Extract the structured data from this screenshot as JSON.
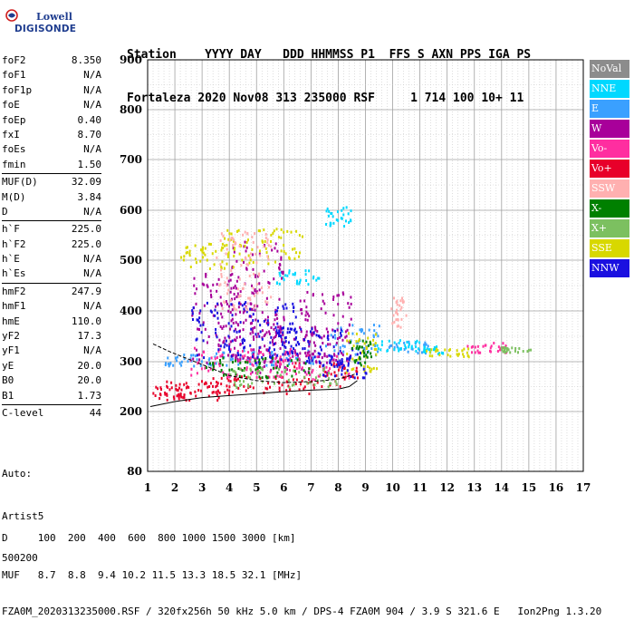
{
  "logo": {
    "line1": "Lowell",
    "line2": "DIGISONDE"
  },
  "header": {
    "labels": "Station    YYYY DAY   DDD HHMMSS P1  FFS S AXN PPS IGA PS",
    "values": "Fortaleza 2020 Nov08 313 235000 RSF     1 714 100 10+ 11"
  },
  "params": {
    "group1": [
      {
        "name": "foF2",
        "value": "8.350"
      },
      {
        "name": "foF1",
        "value": "N/A"
      },
      {
        "name": "foF1p",
        "value": "N/A"
      },
      {
        "name": "foE",
        "value": "N/A"
      },
      {
        "name": "foEp",
        "value": "0.40"
      },
      {
        "name": "fxI",
        "value": "8.70"
      },
      {
        "name": "foEs",
        "value": "N/A"
      },
      {
        "name": "fmin",
        "value": "1.50"
      }
    ],
    "group2": [
      {
        "name": "MUF(D)",
        "value": "32.09"
      },
      {
        "name": "M(D)",
        "value": "3.84"
      },
      {
        "name": "D",
        "value": "N/A"
      }
    ],
    "group3": [
      {
        "name": "h`F",
        "value": "225.0"
      },
      {
        "name": "h`F2",
        "value": "225.0"
      },
      {
        "name": "h`E",
        "value": "N/A"
      },
      {
        "name": "h`Es",
        "value": "N/A"
      }
    ],
    "group4": [
      {
        "name": "hmF2",
        "value": "247.9"
      },
      {
        "name": "hmF1",
        "value": "N/A"
      },
      {
        "name": "hmE",
        "value": "110.0"
      },
      {
        "name": "yF2",
        "value": "17.3"
      },
      {
        "name": "yF1",
        "value": "N/A"
      },
      {
        "name": "yE",
        "value": "20.0"
      },
      {
        "name": "B0",
        "value": "20.0"
      },
      {
        "name": "B1",
        "value": "1.73"
      }
    ],
    "group5": [
      {
        "name": "C-level",
        "value": "44"
      }
    ]
  },
  "auto": {
    "line1": "Auto:",
    "line2": "Artist5",
    "line3": "500200"
  },
  "legend": [
    {
      "label": "NoVal",
      "color": "#8c8c8c"
    },
    {
      "label": "NNE",
      "color": "#00d8ff"
    },
    {
      "label": "E",
      "color": "#3aa0ff"
    },
    {
      "label": "W",
      "color": "#a8009a"
    },
    {
      "label": "Vo-",
      "color": "#ff2ea0"
    },
    {
      "label": "Vo+",
      "color": "#e8002a"
    },
    {
      "label": "SSW",
      "color": "#ffb0b0"
    },
    {
      "label": "X-",
      "color": "#008000"
    },
    {
      "label": "X+",
      "color": "#7cc060"
    },
    {
      "label": "SSE",
      "color": "#d8d800"
    },
    {
      "label": "NNW",
      "color": "#1a10e0"
    }
  ],
  "footer": {
    "line1": "D     100  200  400  600  800 1000 1500 3000 [km]",
    "line2": "MUF   8.7  8.8  9.4 10.2 11.5 13.3 18.5 32.1 [MHz]",
    "line3": "FZA0M_2020313235000.RSF / 320fx256h 50 kHz 5.0 km / DPS-4 FZA0M 904 / 3.9 S 321.6 E   Ion2Png 1.3.20"
  },
  "chart_data": {
    "type": "scatter",
    "xlim": [
      1,
      17
    ],
    "ylim": [
      80,
      900
    ],
    "x_ticks": [
      "1",
      "2",
      "3",
      "4",
      "5",
      "6",
      "7",
      "8",
      "9",
      "10",
      "11",
      "12",
      "13",
      "14",
      "15",
      "16",
      "17"
    ],
    "y_ticks": [
      "80",
      "200",
      "300",
      "400",
      "500",
      "600",
      "700",
      "800",
      "900"
    ],
    "y_tick_values": [
      80,
      200,
      300,
      400,
      500,
      600,
      700,
      800,
      900
    ],
    "grid": true,
    "series": [
      {
        "color": "#e8002a",
        "clusters": [
          [
            1.8,
            240,
            0.8,
            15
          ],
          [
            3.0,
            245,
            1.6,
            20
          ],
          [
            5.0,
            255,
            2.0,
            18
          ],
          [
            7.5,
            275,
            1.2,
            25
          ]
        ]
      },
      {
        "color": "#3aa0ff",
        "clusters": [
          [
            2.6,
            305,
            1.0,
            12
          ],
          [
            5.2,
            310,
            2.0,
            15
          ],
          [
            8.5,
            345,
            1.0,
            30
          ],
          [
            10.5,
            330,
            0.8,
            12
          ]
        ]
      },
      {
        "color": "#00d8ff",
        "clusters": [
          [
            10.2,
            335,
            0.8,
            12
          ],
          [
            11.5,
            325,
            0.4,
            8
          ],
          [
            6.5,
            470,
            0.8,
            15
          ],
          [
            8.0,
            590,
            0.5,
            20
          ]
        ]
      },
      {
        "color": "#a8009a",
        "clusters": [
          [
            3.8,
            390,
            1.2,
            90
          ],
          [
            5.0,
            420,
            1.0,
            120
          ],
          [
            6.2,
            330,
            1.4,
            50
          ],
          [
            7.5,
            370,
            1.0,
            70
          ]
        ]
      },
      {
        "color": "#ff2ea0",
        "clusters": [
          [
            4.5,
            300,
            2.0,
            30
          ],
          [
            7.0,
            290,
            1.4,
            25
          ],
          [
            13.5,
            330,
            0.8,
            12
          ]
        ]
      },
      {
        "color": "#d8d800",
        "clusters": [
          [
            3.2,
            510,
            1.0,
            25
          ],
          [
            5.2,
            530,
            1.5,
            35
          ],
          [
            8.8,
            320,
            0.6,
            40
          ],
          [
            12.0,
            320,
            0.8,
            8
          ]
        ]
      },
      {
        "color": "#1a10e0",
        "clusters": [
          [
            4.5,
            360,
            2.0,
            60
          ],
          [
            6.8,
            330,
            1.4,
            40
          ],
          [
            8.2,
            300,
            0.8,
            30
          ]
        ]
      },
      {
        "color": "#008000",
        "clusters": [
          [
            5.0,
            290,
            2.0,
            20
          ],
          [
            8.8,
            320,
            0.4,
            25
          ]
        ]
      },
      {
        "color": "#7cc060",
        "clusters": [
          [
            6.0,
            270,
            2.0,
            20
          ],
          [
            14.5,
            325,
            0.6,
            6
          ]
        ]
      },
      {
        "color": "#ffb0b0",
        "clusters": [
          [
            10.2,
            400,
            0.3,
            30
          ],
          [
            4.5,
            480,
            1.0,
            80
          ]
        ]
      }
    ],
    "trace_o": [
      [
        1.1,
        210
      ],
      [
        2.0,
        220
      ],
      [
        3.0,
        228
      ],
      [
        4.0,
        232
      ],
      [
        5.0,
        236
      ],
      [
        6.0,
        240
      ],
      [
        7.0,
        243
      ],
      [
        8.0,
        245
      ],
      [
        8.4,
        250
      ],
      [
        8.7,
        262
      ]
    ],
    "trace_x": [
      [
        1.2,
        335
      ],
      [
        1.8,
        320
      ],
      [
        2.5,
        305
      ],
      [
        3.2,
        290
      ],
      [
        4.0,
        272
      ],
      [
        5.0,
        262
      ],
      [
        6.0,
        258
      ],
      [
        7.0,
        260
      ],
      [
        8.0,
        265
      ],
      [
        8.6,
        275
      ]
    ]
  }
}
